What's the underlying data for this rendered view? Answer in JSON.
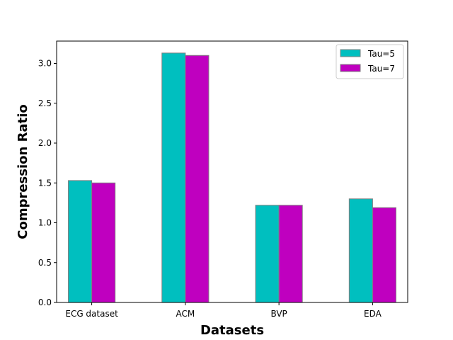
{
  "chart_data": {
    "type": "bar",
    "title": "",
    "xlabel": "Datasets",
    "ylabel": "Compression Ratio",
    "categories": [
      "ECG dataset",
      "ACM",
      "BVP",
      "EDA"
    ],
    "series": [
      {
        "name": "Tau=5",
        "color": "#00bfbf",
        "values": [
          1.53,
          3.13,
          1.22,
          1.3
        ]
      },
      {
        "name": "Tau=7",
        "color": "#bf00bf",
        "values": [
          1.5,
          3.1,
          1.22,
          1.19
        ]
      }
    ],
    "ylim": [
      0,
      3.28
    ],
    "yticks": [
      0.0,
      0.5,
      1.0,
      1.5,
      2.0,
      2.5,
      3.0
    ],
    "ytick_labels": [
      "0.0",
      "0.5",
      "1.0",
      "1.5",
      "2.0",
      "2.5",
      "3.0"
    ],
    "grid": false,
    "legend_position": "top-right",
    "bar_edge_color": "#808080"
  }
}
